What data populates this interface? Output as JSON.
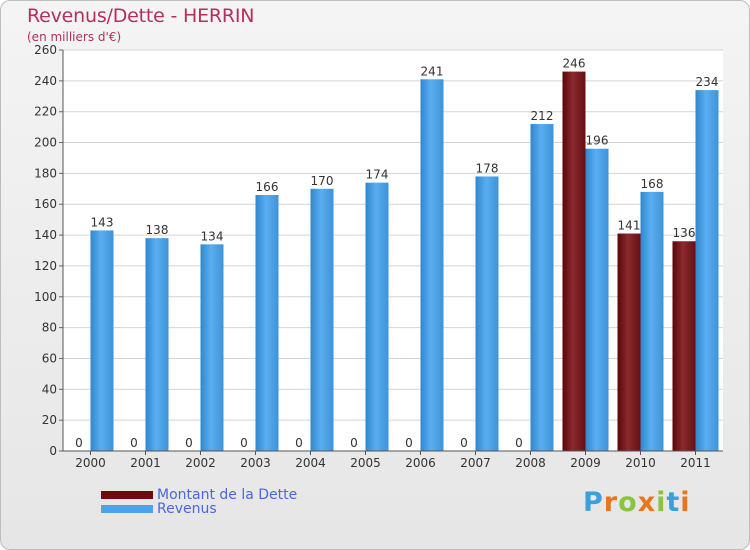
{
  "title": "Revenus/Dette - HERRIN",
  "subtitle": "(en milliers d'€)",
  "colors": {
    "debt": "#6e0b0f",
    "revenue": "#4ea3e6",
    "title": "#b4305a",
    "legend_text": "#4a67e0"
  },
  "legend": {
    "debt_label": "Montant de la Dette",
    "revenue_label": "Revenus"
  },
  "logo": {
    "letters": [
      "P",
      "r",
      "o",
      "x",
      "i",
      "t",
      "i"
    ]
  },
  "chart_data": {
    "type": "bar",
    "title": "Revenus/Dette - HERRIN",
    "ylabel": "(en milliers d'€)",
    "xlabel": "",
    "ylim": [
      0,
      260
    ],
    "yticks": [
      0,
      20,
      40,
      60,
      80,
      100,
      120,
      140,
      160,
      180,
      200,
      220,
      240,
      260
    ],
    "categories": [
      "2000",
      "2001",
      "2002",
      "2003",
      "2004",
      "2005",
      "2006",
      "2007",
      "2008",
      "2009",
      "2010",
      "2011"
    ],
    "series": [
      {
        "name": "Montant de la Dette",
        "values": [
          0,
          0,
          0,
          0,
          0,
          0,
          0,
          0,
          0,
          246,
          141,
          136
        ]
      },
      {
        "name": "Revenus",
        "values": [
          143,
          138,
          134,
          166,
          170,
          174,
          241,
          178,
          212,
          196,
          168,
          234
        ]
      }
    ],
    "grid": true,
    "legend_position": "bottom-left"
  }
}
